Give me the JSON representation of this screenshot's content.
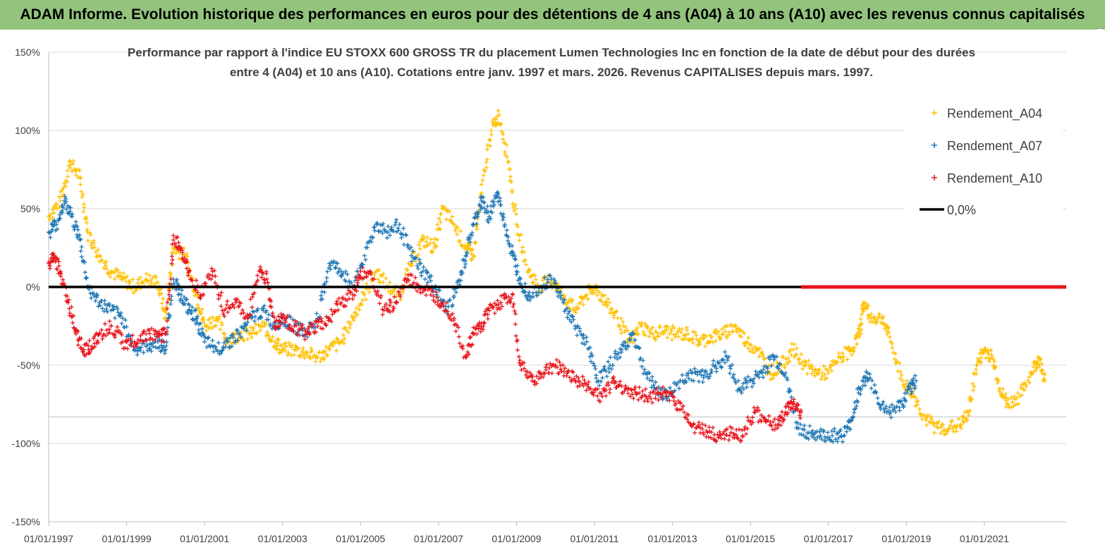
{
  "banner": {
    "title": "ADAM Informe. Evolution historique des performances en euros pour des détentions de 4 ans (A04) à 10 ans (A10) avec les revenus connus capitalisés"
  },
  "colors": {
    "banner_bg": "#93c47d",
    "A04": "#ffc000",
    "A07": "#1f77b4",
    "A10": "#e8141b",
    "zero_line": "#000000",
    "grid": "#d9d9d9"
  },
  "chart_data": {
    "type": "scatter",
    "title_line1": "Performance par rapport à l'indice EU STOXX 600 GROSS TR  du placement Lumen Technologies Inc en fonction de la date de début pour des durées",
    "title_line2": "entre 4 (A04) et 10 ans (A10). Cotations entre janv. 1997 et mars. 2026. Revenus CAPITALISES depuis mars. 1997.",
    "xlabel": "",
    "ylabel": "",
    "xlim": [
      1997.0,
      2023.1
    ],
    "ylim": [
      -150,
      150
    ],
    "y_ticks": [
      150,
      100,
      50,
      0,
      -50,
      -100,
      -150
    ],
    "y_tick_labels": [
      "150%",
      "100%",
      "50%",
      "0%",
      "-50%",
      "-100%",
      "-150%"
    ],
    "x_ticks": [
      1997,
      1999,
      2001,
      2003,
      2005,
      2007,
      2009,
      2011,
      2013,
      2015,
      2017,
      2019,
      2021
    ],
    "x_tick_labels": [
      "01/01/1997",
      "01/01/1999",
      "01/01/2001",
      "01/01/2003",
      "01/01/2005",
      "01/01/2007",
      "01/01/2009",
      "01/01/2011",
      "01/01/2013",
      "01/01/2015",
      "01/01/2017",
      "01/01/2019",
      "01/01/2021"
    ],
    "grid": "horizontal",
    "legend_position": "right",
    "series": [
      {
        "name": "Rendement_A04",
        "color": "#ffc000",
        "x": [
          1997.0,
          1997.3,
          1997.55,
          1997.8,
          1998.0,
          1998.3,
          1998.6,
          1998.9,
          1999.2,
          1999.5,
          1999.8,
          2000.0,
          2000.2,
          2000.5,
          2000.8,
          2001.0,
          2001.3,
          2001.6,
          2001.9,
          2002.2,
          2002.5,
          2002.8,
          2003.0,
          2003.3,
          2003.6,
          2003.9,
          2004.2,
          2004.5,
          2004.8,
          2005.1,
          2005.4,
          2005.7,
          2006.0,
          2006.3,
          2006.6,
          2006.9,
          2007.1,
          2007.4,
          2007.7,
          2007.9,
          2008.1,
          2008.35,
          2008.55,
          2008.8,
          2009.0,
          2009.3,
          2009.6,
          2009.9,
          2010.2,
          2010.5,
          2010.8,
          2011.0,
          2011.3,
          2011.6,
          2011.9,
          2012.2,
          2012.5,
          2012.8,
          2013.1,
          2013.4,
          2013.7,
          2014.0,
          2014.3,
          2014.6,
          2014.9,
          2015.2,
          2015.5,
          2015.8,
          2016.1,
          2016.4,
          2016.7,
          2017.0,
          2017.3,
          2017.6,
          2017.8,
          2017.9,
          2018.1,
          2018.4,
          2018.6,
          2018.9,
          2019.2,
          2019.5,
          2019.8,
          2020.1,
          2020.4,
          2020.6,
          2020.8,
          2021.0,
          2021.2,
          2021.4,
          2021.6,
          2021.9,
          2022.2,
          2022.4,
          2022.55
        ],
        "y": [
          45,
          55,
          80,
          70,
          35,
          20,
          10,
          5,
          0,
          5,
          3,
          -20,
          25,
          20,
          -5,
          -25,
          -20,
          -35,
          -30,
          -30,
          -25,
          -35,
          -40,
          -40,
          -42,
          -45,
          -40,
          -35,
          -20,
          -5,
          10,
          0,
          -5,
          15,
          30,
          25,
          50,
          40,
          25,
          20,
          60,
          100,
          110,
          80,
          40,
          10,
          0,
          5,
          -5,
          -15,
          -5,
          0,
          -10,
          -20,
          -35,
          -25,
          -30,
          -28,
          -30,
          -30,
          -35,
          -32,
          -30,
          -25,
          -35,
          -40,
          -55,
          -50,
          -40,
          -50,
          -55,
          -55,
          -45,
          -40,
          -30,
          -10,
          -20,
          -20,
          -35,
          -60,
          -70,
          -85,
          -90,
          -90,
          -88,
          -80,
          -50,
          -40,
          -45,
          -65,
          -75,
          -70,
          -55,
          -45,
          -60
        ]
      },
      {
        "name": "Rendement_A07",
        "color": "#1f77b4",
        "x": [
          1997.0,
          1997.2,
          1997.4,
          1997.6,
          1997.8,
          1998.0,
          1998.3,
          1998.6,
          1998.9,
          1999.2,
          1999.5,
          1999.8,
          2000.0,
          2000.2,
          2000.4,
          2000.6,
          2000.8,
          2001.0,
          2001.3,
          2001.6,
          2001.9,
          2002.2,
          2002.5,
          2002.8,
          2003.0,
          2003.3,
          2003.6,
          2003.9,
          2004.2,
          2004.5,
          2004.8,
          2005.1,
          2005.4,
          2005.7,
          2006.0,
          2006.3,
          2006.6,
          2006.9,
          2007.2,
          2007.5,
          2007.7,
          2007.9,
          2008.1,
          2008.3,
          2008.5,
          2008.7,
          2008.9,
          2009.1,
          2009.3,
          2009.6,
          2009.9,
          2010.2,
          2010.5,
          2010.8,
          2011.1,
          2011.4,
          2011.7,
          2012.0,
          2012.3,
          2012.6,
          2012.9,
          2013.2,
          2013.5,
          2013.8,
          2014.1,
          2014.4,
          2014.7,
          2015.0,
          2015.3,
          2015.6,
          2015.9,
          2016.2,
          2016.5,
          2016.8,
          2017.1,
          2017.4,
          2017.6,
          2017.8,
          2018.0,
          2018.3,
          2018.6,
          2018.9,
          2019.1,
          2019.25
        ],
        "y": [
          35,
          40,
          55,
          45,
          30,
          0,
          -10,
          -15,
          -20,
          -40,
          -38,
          -35,
          -40,
          5,
          -5,
          -15,
          -20,
          -35,
          -40,
          -35,
          -30,
          -20,
          -15,
          -25,
          -20,
          -25,
          -30,
          -20,
          15,
          10,
          0,
          20,
          40,
          35,
          40,
          20,
          10,
          0,
          -15,
          0,
          20,
          40,
          55,
          45,
          60,
          40,
          20,
          5,
          -5,
          0,
          5,
          -10,
          -25,
          -35,
          -60,
          -50,
          -40,
          -30,
          -55,
          -65,
          -70,
          -60,
          -55,
          -58,
          -50,
          -45,
          -65,
          -60,
          -55,
          -45,
          -55,
          -90,
          -93,
          -95,
          -95,
          -95,
          -85,
          -65,
          -55,
          -75,
          -80,
          -75,
          -65,
          -60
        ]
      },
      {
        "name": "Rendement_A10",
        "color": "#e8141b",
        "x": [
          1997.0,
          1997.15,
          1997.3,
          1997.5,
          1997.7,
          1997.9,
          1998.1,
          1998.3,
          1998.6,
          1998.9,
          1999.2,
          1999.5,
          1999.8,
          2000.0,
          2000.2,
          2000.4,
          2000.6,
          2000.9,
          2001.2,
          2001.5,
          2001.8,
          2002.1,
          2002.4,
          2002.6,
          2002.8,
          2003.0,
          2003.3,
          2003.6,
          2003.9,
          2004.2,
          2004.5,
          2004.8,
          2005.0,
          2005.3,
          2005.6,
          2005.9,
          2006.2,
          2006.5,
          2006.8,
          2007.1,
          2007.4,
          2007.7,
          2007.9,
          2008.1,
          2008.3,
          2008.6,
          2008.9,
          2009.1,
          2009.4,
          2009.7,
          2010.0,
          2010.3,
          2010.6,
          2010.9,
          2011.2,
          2011.5,
          2011.8,
          2012.1,
          2012.4,
          2012.7,
          2013.0,
          2013.3,
          2013.6,
          2013.9,
          2014.2,
          2014.5,
          2014.8,
          2015.1,
          2015.4,
          2015.7,
          2015.9,
          2016.1,
          2016.3
        ],
        "y": [
          15,
          20,
          10,
          -10,
          -30,
          -40,
          -38,
          -30,
          -25,
          -35,
          -35,
          -30,
          -32,
          -30,
          30,
          25,
          10,
          -5,
          10,
          -15,
          -10,
          -20,
          10,
          5,
          -25,
          -20,
          -25,
          -30,
          -25,
          -20,
          -10,
          -5,
          10,
          5,
          -15,
          -10,
          5,
          0,
          -5,
          -10,
          -20,
          -45,
          -30,
          -25,
          -15,
          -10,
          -5,
          -50,
          -60,
          -55,
          -50,
          -55,
          -60,
          -65,
          -70,
          -60,
          -65,
          -68,
          -70,
          -68,
          -70,
          -80,
          -90,
          -93,
          -95,
          -93,
          -95,
          -80,
          -85,
          -88,
          -80,
          -75,
          -80
        ]
      },
      {
        "name": "0,0%",
        "color": "#000000",
        "x": [
          1997.0,
          2023.1
        ],
        "y": [
          0,
          0
        ]
      }
    ],
    "flat_segment_A10": {
      "x_start": 2016.3,
      "x_end": 2023.1,
      "y": 0
    }
  }
}
